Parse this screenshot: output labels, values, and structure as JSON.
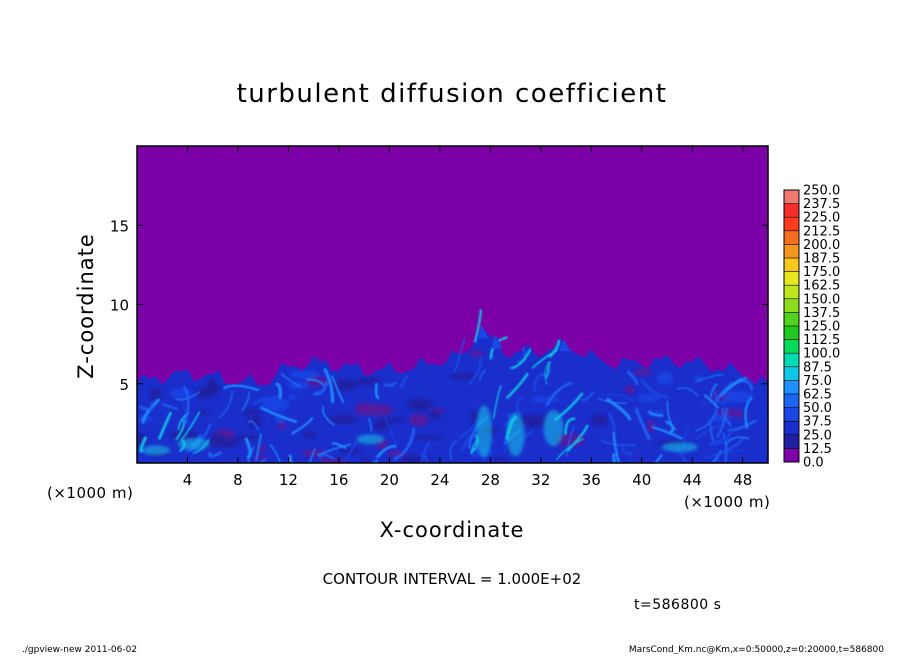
{
  "chart_data": {
    "type": "heatmap",
    "title": "turbulent diffusion coefficient",
    "xlabel": "X-coordinate",
    "ylabel": "Z-coordinate",
    "x_unit": "(×1000 m)",
    "y_unit": "(×1000 m)",
    "xlim": [
      0,
      50
    ],
    "ylim": [
      0,
      20
    ],
    "xticks": [
      "4",
      "8",
      "12",
      "16",
      "20",
      "24",
      "28",
      "32",
      "36",
      "40",
      "44",
      "48"
    ],
    "yticks": [
      "5",
      "10",
      "15"
    ],
    "field_top_height_profile": {
      "x": [
        0,
        2,
        4,
        6,
        8,
        10,
        12,
        14,
        16,
        18,
        20,
        22,
        24,
        26,
        27,
        28,
        29,
        30,
        31,
        32,
        34,
        36,
        38,
        40,
        42,
        44,
        46,
        48,
        50
      ],
      "z": [
        5.2,
        5.6,
        5.8,
        5.6,
        5.3,
        5.2,
        6.2,
        6.5,
        6.3,
        6.0,
        6.0,
        6.2,
        6.6,
        7.0,
        8.5,
        8.0,
        7.3,
        7.0,
        7.2,
        7.2,
        7.6,
        6.8,
        6.4,
        6.5,
        6.6,
        6.5,
        6.2,
        5.8,
        5.0
      ]
    },
    "plumes": [
      {
        "x": 27.3,
        "z_top": 8.7
      },
      {
        "x": 28.4,
        "z_top": 8.1
      },
      {
        "x": 33.8,
        "z_top": 7.8
      }
    ],
    "colorbar": {
      "levels": [
        "0.0",
        "12.5",
        "25.0",
        "37.5",
        "50.0",
        "62.5",
        "75.0",
        "87.5",
        "100.0",
        "112.5",
        "125.0",
        "137.5",
        "150.0",
        "162.5",
        "175.0",
        "187.5",
        "200.0",
        "212.5",
        "225.0",
        "237.5",
        "250.0"
      ],
      "colors": [
        "#7b00a8",
        "#2020a0",
        "#1a2ecc",
        "#1a46e6",
        "#1e64f5",
        "#1e90ff",
        "#0cc8e6",
        "#00dcb4",
        "#00dc5a",
        "#1ec81e",
        "#50d21e",
        "#8cdc1e",
        "#bee61e",
        "#e6e61e",
        "#f5c81e",
        "#f5961e",
        "#f56e1e",
        "#ff3c1e",
        "#f52d2d",
        "#f0786e"
      ]
    },
    "contour_interval_label": "CONTOUR INTERVAL = 1.000E+02",
    "time_label": "t=586800 s"
  },
  "footer": {
    "left": "./gpview-new   2011-06-02",
    "right": "MarsCond_Km.nc@Km,x=0:50000,z=0:20000,t=586800"
  }
}
